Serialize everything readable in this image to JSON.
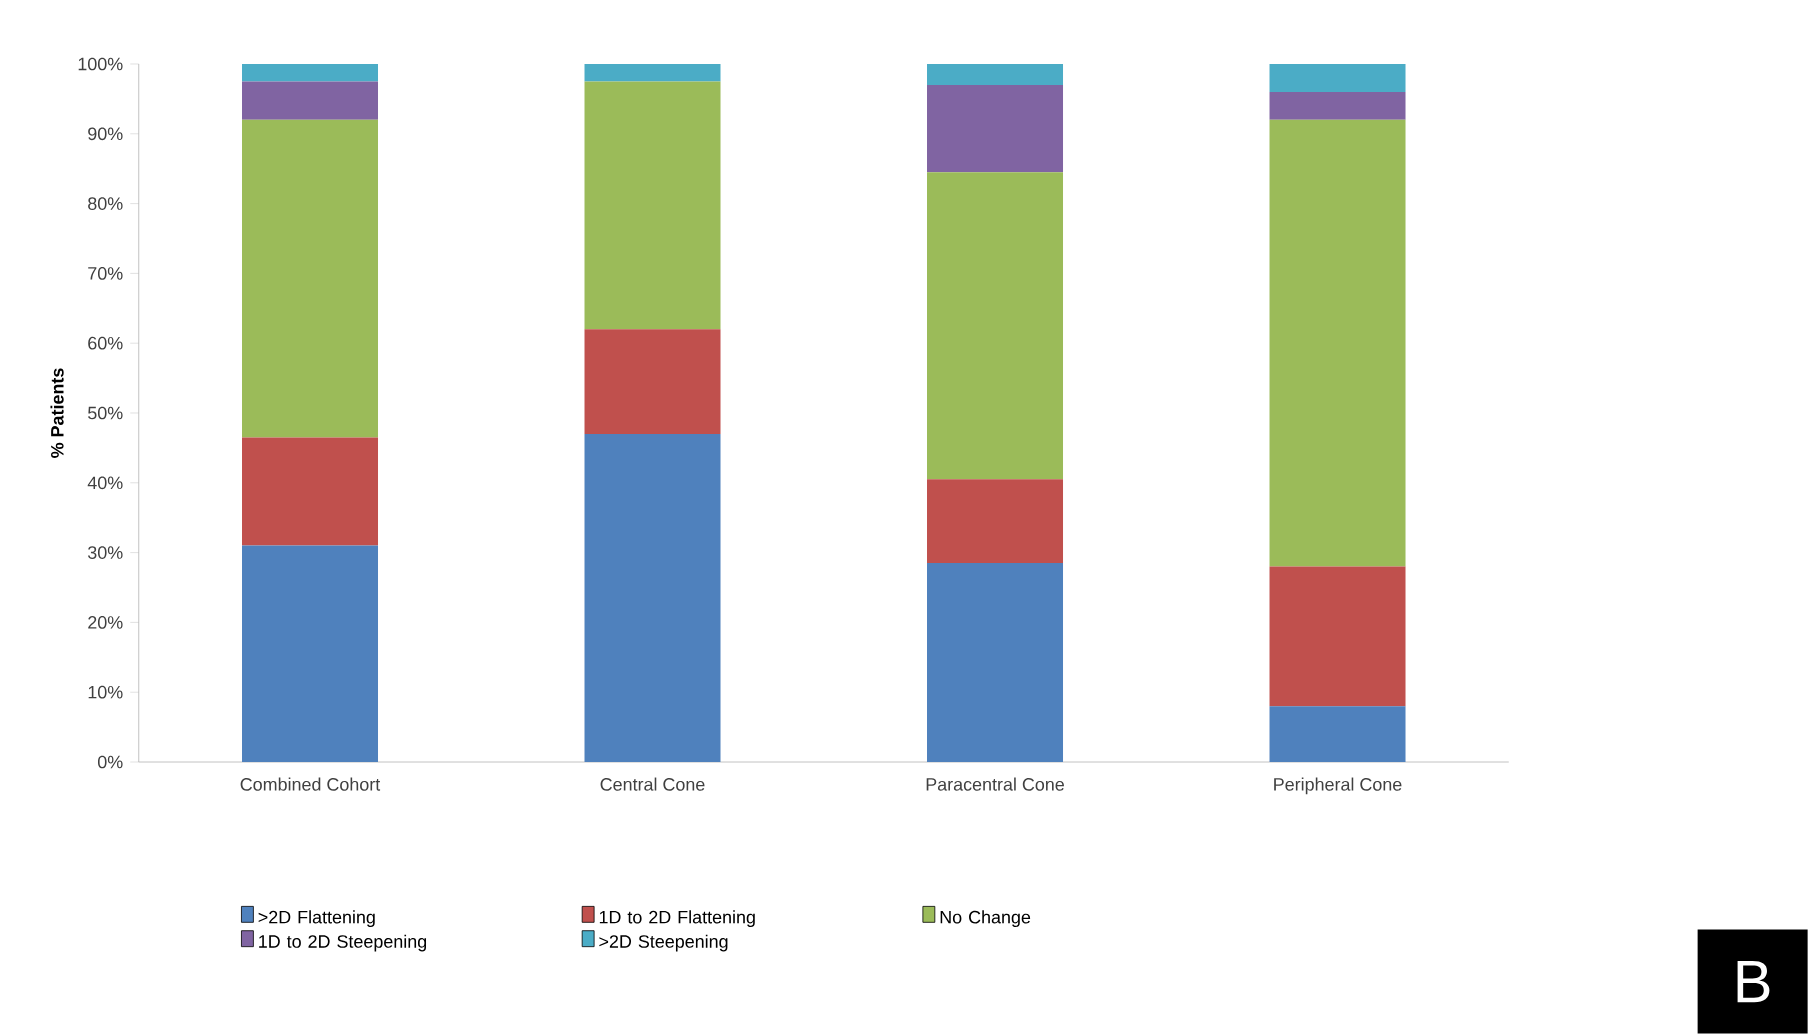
{
  "chart_data": {
    "type": "bar",
    "stacked": true,
    "ylabel": "% Patients",
    "categories": [
      "Combined Cohort",
      "Central Cone",
      "Paracentral Cone",
      "Peripheral Cone"
    ],
    "series": [
      {
        "name": ">2D Flattening",
        "color": "#4f81bd",
        "values": [
          31,
          47,
          28.5,
          8
        ]
      },
      {
        "name": "1D to 2D Flattening",
        "color": "#c0504d",
        "values": [
          15.5,
          15,
          12,
          20
        ]
      },
      {
        "name": "No Change",
        "color": "#9bbb59",
        "values": [
          45.5,
          35.5,
          44,
          64
        ]
      },
      {
        "name": "1D to 2D Steepening",
        "color": "#8064a2",
        "values": [
          5.5,
          0,
          12.5,
          4
        ]
      },
      {
        "name": ">2D Steepening",
        "color": "#4bacc6",
        "values": [
          2.5,
          2.5,
          3,
          4
        ]
      }
    ],
    "ylim": [
      0,
      100
    ],
    "yticks": [
      {
        "value": 0,
        "label": "0%"
      },
      {
        "value": 10,
        "label": "10%"
      },
      {
        "value": 20,
        "label": "20%"
      },
      {
        "value": 30,
        "label": "30%"
      },
      {
        "value": 40,
        "label": "40%"
      },
      {
        "value": 50,
        "label": "50%"
      },
      {
        "value": 60,
        "label": "60%"
      },
      {
        "value": 70,
        "label": "70%"
      },
      {
        "value": 80,
        "label": "80%"
      },
      {
        "value": 90,
        "label": "90%"
      },
      {
        "value": 100,
        "label": "100%"
      }
    ],
    "grid": false,
    "legend": "bottom",
    "annotations": [
      "B"
    ]
  }
}
